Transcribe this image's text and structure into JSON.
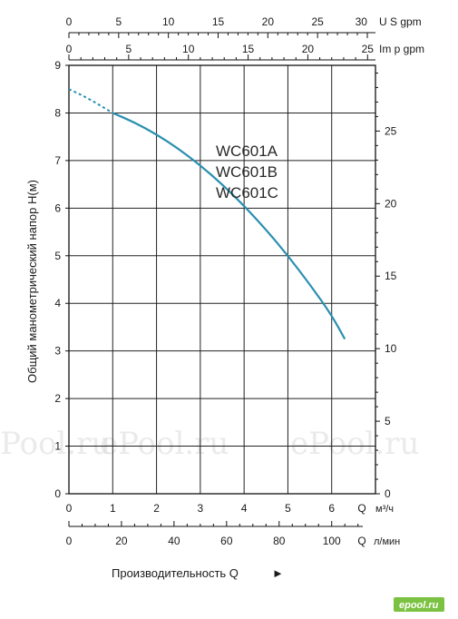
{
  "chart_data": {
    "type": "line",
    "models": [
      "WC601A",
      "WC601B",
      "WC601C"
    ],
    "ylabel": "Общий манометрический напор  H(м)",
    "xlabel": "Производительность Q",
    "xlabel_arrow": "►",
    "left_axis": {
      "ylim": [
        0,
        9
      ],
      "ticks": [
        "0",
        "1",
        "2",
        "3",
        "4",
        "5",
        "6",
        "7",
        "8",
        "9"
      ]
    },
    "right_axis": {
      "ylim_ft": [
        0,
        29.53
      ],
      "ticks": [
        "0",
        "5",
        "10",
        "15",
        "20",
        "25"
      ]
    },
    "x_m3h": {
      "xlim": [
        0,
        7
      ],
      "ticks": [
        "0",
        "1",
        "2",
        "3",
        "4",
        "5",
        "6"
      ],
      "unit_q": "Q",
      "unit": "м³/ч"
    },
    "x_lmin": {
      "ticks": [
        "0",
        "20",
        "40",
        "60",
        "80",
        "100"
      ],
      "unit_q": "Q",
      "unit": "л/мин"
    },
    "top_us_gpm": {
      "ticks": [
        "0",
        "5",
        "10",
        "15",
        "20",
        "25",
        "30"
      ],
      "unit": "U S gpm"
    },
    "top_imp_gpm": {
      "ticks": [
        "0",
        "5",
        "10",
        "15",
        "20",
        "25"
      ],
      "unit": "Im p gpm"
    },
    "series": [
      {
        "dashed_x": [
          0,
          0.3,
          0.6,
          1.0
        ],
        "dashed_y": [
          8.5,
          8.37,
          8.22,
          8.0
        ]
      },
      {
        "x": [
          1.0,
          1.5,
          2.0,
          2.5,
          3.0,
          3.5,
          4.0,
          4.5,
          5.0,
          5.5,
          6.0,
          6.3
        ],
        "y": [
          8.0,
          7.8,
          7.55,
          7.25,
          6.9,
          6.5,
          6.05,
          5.55,
          5.0,
          4.4,
          3.75,
          3.25
        ]
      }
    ],
    "line_color": "#2a8fb0",
    "grid": true
  },
  "watermark": "ePool.ru",
  "logo": "epool.ru"
}
